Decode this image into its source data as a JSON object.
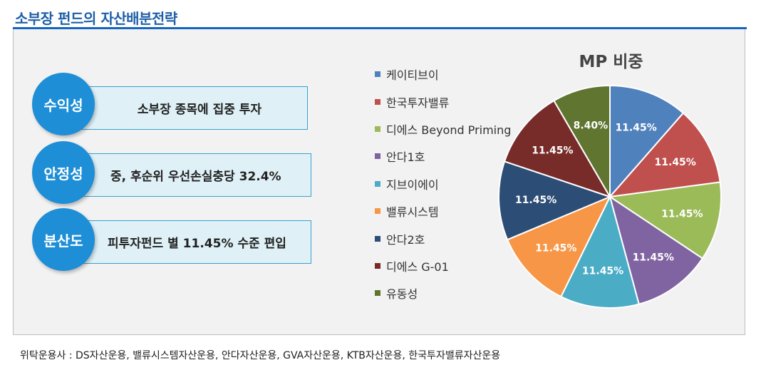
{
  "page": {
    "title": "소부장 펀드의 자산배분전략"
  },
  "strategies": [
    {
      "label": "수익성",
      "text": "소부장 종목에 집중 투자"
    },
    {
      "label": "안정성",
      "text": "중, 후순위 우선손실충당 32.4%"
    },
    {
      "label": "분산도",
      "text": "피투자펀드 별  11.45% 수준 편입"
    }
  ],
  "chart_data": {
    "type": "pie",
    "title": "MP 비중",
    "legend_position": "left",
    "slices": [
      {
        "name": "케이티브이",
        "value": 11.45,
        "label": "11.45%",
        "color": "#4f81bd"
      },
      {
        "name": "한국투자밸류",
        "value": 11.45,
        "label": "11.45%",
        "color": "#c0504d"
      },
      {
        "name": "디에스 Beyond Priming",
        "value": 11.45,
        "label": "11.45%",
        "color": "#9bbb59"
      },
      {
        "name": "안다1호",
        "value": 11.45,
        "label": "11.45%",
        "color": "#8064a2"
      },
      {
        "name": "지브이에이",
        "value": 11.45,
        "label": "11.45%",
        "color": "#4bacc6"
      },
      {
        "name": "밸류시스템",
        "value": 11.45,
        "label": "11.45%",
        "color": "#f79646"
      },
      {
        "name": "안다2호",
        "value": 11.45,
        "label": "11.45%",
        "color": "#2c4d75"
      },
      {
        "name": "디에스 G-01",
        "value": 11.45,
        "label": "11.45%",
        "color": "#772c2a"
      },
      {
        "name": "유동성",
        "value": 8.4,
        "label": "8.40%",
        "color": "#5f7530"
      }
    ]
  },
  "footnote": "위탁운용사 : DS자산운용, 밸류시스템자산운용, 안다자산운용, GVA자산운용, KTB자산운용, 한국투자밸류자산운용"
}
